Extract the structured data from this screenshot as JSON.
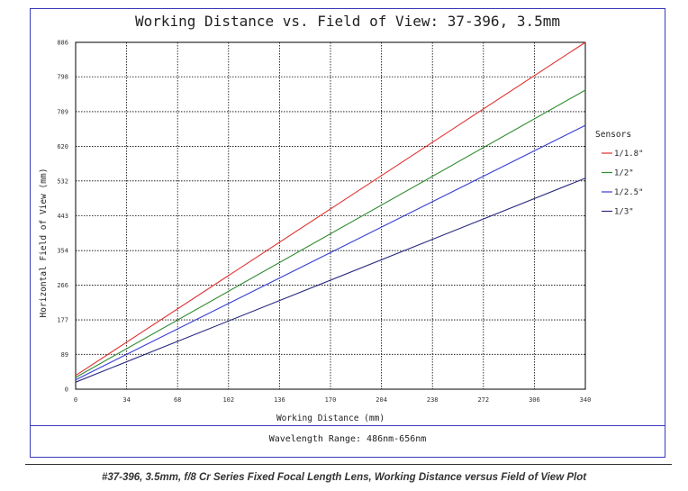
{
  "chart_data": {
    "type": "line",
    "title": "Working Distance vs. Field of View: 37-396, 3.5mm",
    "xlabel": "Working Distance (mm)",
    "ylabel": "Horizontal Field of View (mm)",
    "xlim": [
      0,
      340
    ],
    "ylim": [
      0,
      886
    ],
    "x_ticks": [
      "0",
      "34",
      "68",
      "102",
      "136",
      "170",
      "204",
      "238",
      "272",
      "306",
      "340"
    ],
    "y_ticks": [
      "0",
      "89",
      "177",
      "266",
      "354",
      "443",
      "532",
      "620",
      "709",
      "798",
      "886"
    ],
    "grid": true,
    "legend_title": "Sensors",
    "legend_position": "right",
    "series": [
      {
        "name": "1/1.8\"",
        "color": "#e03030",
        "x": [
          0,
          340
        ],
        "y": [
          35,
          886
        ]
      },
      {
        "name": "1/2\"",
        "color": "#2e8b2e",
        "x": [
          0,
          340
        ],
        "y": [
          30,
          764
        ]
      },
      {
        "name": "1/2.5\"",
        "color": "#3a3ad8",
        "x": [
          0,
          340
        ],
        "y": [
          24,
          674
        ]
      },
      {
        "name": "1/3\"",
        "color": "#2a2a80",
        "x": [
          0,
          340
        ],
        "y": [
          18,
          539
        ]
      }
    ]
  },
  "footer": {
    "wavelength": "Wavelength Range: 486nm-656nm",
    "caption": "#37-396, 3.5mm, f/8 Cr Series Fixed Focal Length Lens, Working Distance versus Field of View Plot"
  }
}
